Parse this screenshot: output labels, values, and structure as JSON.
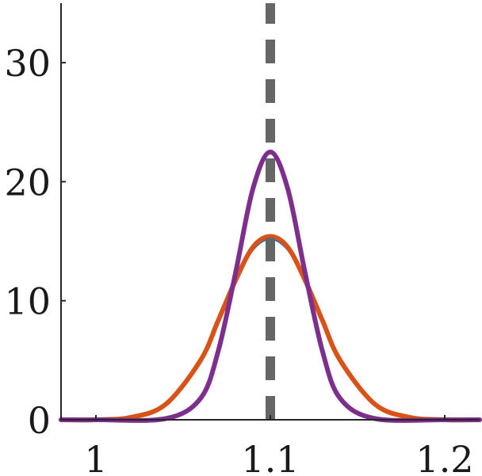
{
  "chart_data": {
    "type": "line",
    "title": "",
    "xlabel": "",
    "ylabel": "",
    "xlim": [
      0.98,
      1.22
    ],
    "ylim": [
      0,
      35
    ],
    "x_ticks": [
      1,
      1.1,
      1.2
    ],
    "x_tick_labels": [
      "1",
      "1.1",
      "1.2"
    ],
    "y_ticks": [
      0,
      10,
      20,
      30
    ],
    "y_tick_labels": [
      "0",
      "10",
      "20",
      "30"
    ],
    "grid": false,
    "legend": "none",
    "series": [
      {
        "style": "solid",
        "color": "#0072bd",
        "x": [
          0.98,
          1.0,
          1.02,
          1.04,
          1.06,
          1.07,
          1.08,
          1.09,
          1.1,
          1.11,
          1.12,
          1.13,
          1.14,
          1.16,
          1.18,
          1.2,
          1.22
        ],
        "y": [
          0.0,
          0.0,
          0.2,
          1.3,
          5.0,
          8.2,
          11.6,
          14.3,
          15.2,
          14.3,
          11.6,
          8.2,
          5.0,
          1.3,
          0.2,
          0.0,
          0.0
        ]
      },
      {
        "style": "solid",
        "color": "#d95319",
        "x": [
          0.98,
          1.0,
          1.02,
          1.04,
          1.06,
          1.07,
          1.08,
          1.09,
          1.1,
          1.11,
          1.12,
          1.13,
          1.14,
          1.16,
          1.18,
          1.2,
          1.22
        ],
        "y": [
          0.0,
          0.0,
          0.2,
          1.3,
          5.0,
          8.3,
          11.7,
          14.5,
          15.4,
          14.5,
          11.7,
          8.3,
          5.0,
          1.3,
          0.2,
          0.0,
          0.0
        ]
      },
      {
        "style": "solid",
        "color": "#7e2f8e",
        "x": [
          0.98,
          1.0,
          1.04,
          1.06,
          1.07,
          1.08,
          1.09,
          1.1,
          1.11,
          1.12,
          1.13,
          1.14,
          1.16,
          1.2,
          1.22
        ],
        "y": [
          0.0,
          0.0,
          0.1,
          1.8,
          5.7,
          12.3,
          19.4,
          22.5,
          19.4,
          12.3,
          5.7,
          1.8,
          0.1,
          0.0,
          0.0
        ]
      },
      {
        "style": "dashed",
        "color": "#666666",
        "x": [
          1.1,
          1.1
        ],
        "y": [
          0,
          35
        ]
      }
    ]
  }
}
